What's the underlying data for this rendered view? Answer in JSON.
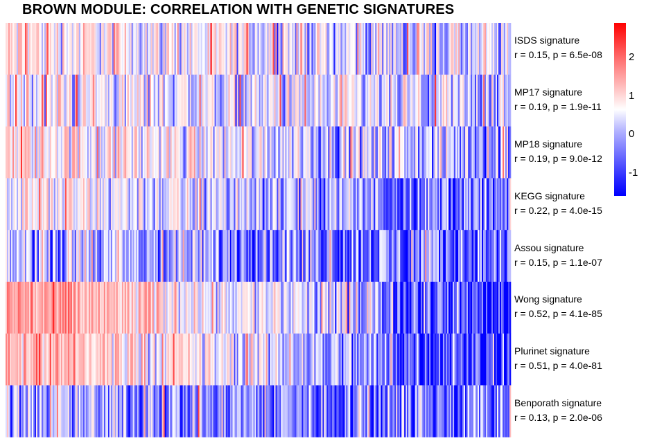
{
  "title": "BROWN MODULE: CORRELATION WITH GENETIC SIGNATURES",
  "colors": {
    "high": "#ff0000",
    "mid": "#ffffff",
    "low": "#0000ff"
  },
  "legend": {
    "ticks": [
      "2",
      "1",
      "0",
      "-1"
    ],
    "range": [
      -1.6,
      2.9
    ],
    "tick_values": [
      2,
      1,
      0,
      -1
    ]
  },
  "chart_data": {
    "type": "heatmap",
    "title": "BROWN MODULE: CORRELATION WITH GENETIC SIGNATURES",
    "rows": [
      {
        "name": "ISDS signature",
        "stat": "r = 0.15, p = 6.5e-08",
        "trend_start": 0.3,
        "trend_end": -0.4
      },
      {
        "name": "MP17 signature",
        "stat": "r = 0.19, p = 1.9e-11",
        "trend_start": 0.1,
        "trend_end": -0.5
      },
      {
        "name": "MP18 signature",
        "stat": "r = 0.19, p = 9.0e-12",
        "trend_start": 0.4,
        "trend_end": -0.6
      },
      {
        "name": "KEGG signature",
        "stat": "r = 0.22, p = 4.0e-15",
        "trend_start": 0.2,
        "trend_end": -1.0
      },
      {
        "name": "Assou signature",
        "stat": "r = 0.15, p = 1.1e-07",
        "trend_start": -0.4,
        "trend_end": -1.0
      },
      {
        "name": "Wong signature",
        "stat": "r = 0.52, p = 4.1e-85",
        "trend_start": 1.2,
        "trend_end": -1.4
      },
      {
        "name": "Plurinet signature",
        "stat": "r = 0.51, p = 4.0e-81",
        "trend_start": 1.0,
        "trend_end": -1.4
      },
      {
        "name": "Benporath signature",
        "stat": "r = 0.13, p = 2.0e-06",
        "trend_start": -0.5,
        "trend_end": -1.0
      }
    ],
    "color_scale": {
      "low": "#0000ff",
      "mid": "#ffffff",
      "high": "#ff0000",
      "min": -1.6,
      "max": 2.9
    },
    "legend_placement": "right"
  }
}
